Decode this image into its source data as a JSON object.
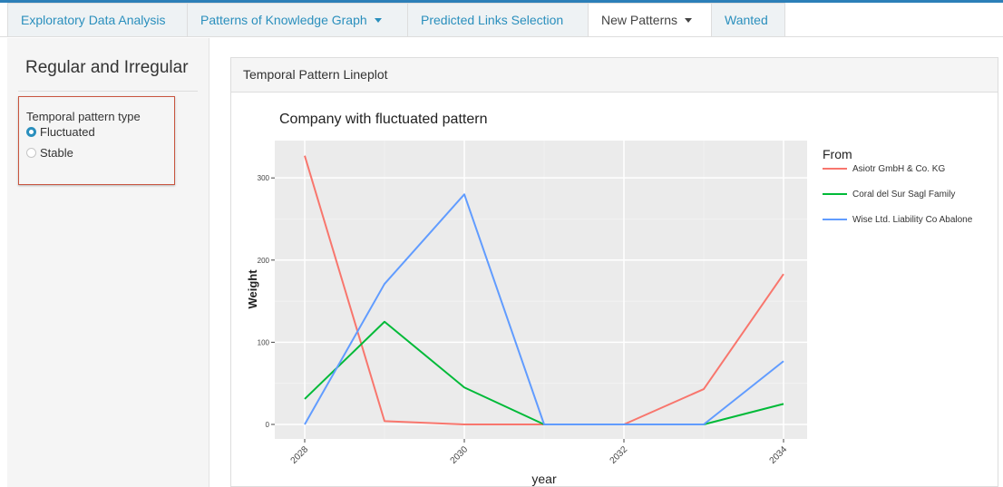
{
  "nav": {
    "tabs": [
      {
        "label": "Exploratory Data Analysis"
      },
      {
        "label": "Patterns of Knowledge Graph"
      },
      {
        "label": "Predicted Links Selection"
      },
      {
        "label": "New Patterns"
      },
      {
        "label": "Wanted"
      }
    ]
  },
  "sidebar": {
    "title": "Regular and Irregular",
    "radio_label": "Temporal pattern type",
    "options": [
      {
        "label": "Fluctuated",
        "selected": true
      },
      {
        "label": "Stable",
        "selected": false
      }
    ]
  },
  "panel": {
    "title": "Temporal Pattern Lineplot"
  },
  "colors": {
    "accent": "#2a8fbd",
    "box_border": "#c9553f",
    "plot_bg": "#ebebeb"
  },
  "chart_data": {
    "type": "line",
    "title": "Company with fluctuated pattern",
    "xlabel": "year",
    "ylabel": "Weight",
    "x": [
      2028,
      2029,
      2030,
      2031,
      2032,
      2033,
      2034
    ],
    "xlim": [
      2028,
      2034
    ],
    "ylim": [
      0,
      330
    ],
    "xticks": [
      2028,
      2030,
      2032,
      2034
    ],
    "yticks": [
      0,
      100,
      200,
      300
    ],
    "grid": true,
    "legend": {
      "title": "From",
      "placement": "right"
    },
    "series": [
      {
        "name": "Asiotr GmbH & Co. KG",
        "color": "#f8766d",
        "values": [
          327,
          4,
          0,
          0,
          0,
          43,
          183
        ]
      },
      {
        "name": "Coral del Sur Sagl Family",
        "color": "#00ba38",
        "values": [
          31,
          125,
          45,
          0,
          0,
          0,
          25
        ]
      },
      {
        "name": "Wise Ltd. Liability Co Abalone",
        "color": "#619cff",
        "values": [
          0,
          171,
          280,
          0,
          0,
          0,
          77
        ]
      }
    ]
  }
}
